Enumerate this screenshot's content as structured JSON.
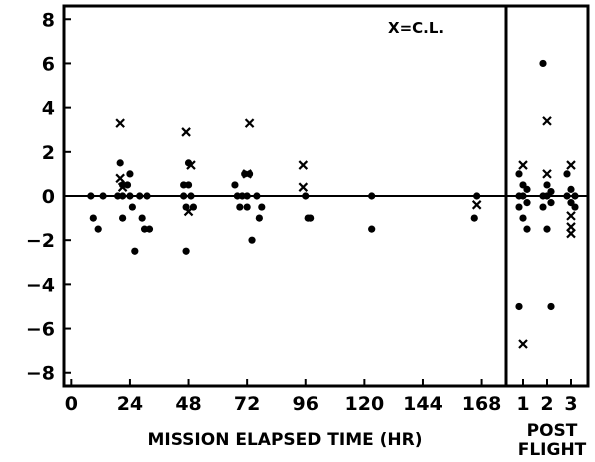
{
  "chart_data": {
    "type": "scatter",
    "xlabel": "MISSION ELAPSED TIME (HR)",
    "postflight_label_line1": "POST",
    "postflight_label_line2": "FLIGHT",
    "legend_text": "X=C.L.",
    "ylim": [
      -8.6,
      8.6
    ],
    "y_ticks": [
      8,
      6,
      4,
      2,
      0,
      -2,
      -4,
      -6,
      -8
    ],
    "x_ticks": [
      0,
      24,
      48,
      72,
      96,
      120,
      144,
      168
    ],
    "xlim": [
      -3,
      178
    ],
    "postflight_ticks": [
      "1",
      "2",
      "3"
    ],
    "zero_line": true,
    "marker_styles": {
      "dot": "filled circle",
      "x": "C.L."
    },
    "series": [
      {
        "marker": "dot",
        "points": [
          [
            8,
            0
          ],
          [
            9,
            -1
          ],
          [
            11,
            -1.5
          ],
          [
            13,
            0
          ],
          [
            19,
            0
          ],
          [
            20,
            1.5
          ],
          [
            21,
            0.5
          ],
          [
            21,
            0
          ],
          [
            21,
            -1
          ],
          [
            23,
            0.5
          ],
          [
            24,
            1
          ],
          [
            24,
            0
          ],
          [
            25,
            -0.5
          ],
          [
            26,
            -2.5
          ],
          [
            28,
            0
          ],
          [
            29,
            -1
          ],
          [
            30,
            -1.5
          ],
          [
            31,
            0
          ],
          [
            32,
            -1.5
          ],
          [
            46,
            0.5
          ],
          [
            46,
            0
          ],
          [
            47,
            -0.5
          ],
          [
            47,
            -2.5
          ],
          [
            48,
            1.5
          ],
          [
            48,
            0.5
          ],
          [
            49,
            0
          ],
          [
            50,
            -0.5
          ],
          [
            67,
            0.5
          ],
          [
            68,
            0
          ],
          [
            69,
            -0.5
          ],
          [
            70,
            0
          ],
          [
            71,
            1
          ],
          [
            72,
            0
          ],
          [
            72,
            -0.5
          ],
          [
            73,
            1
          ],
          [
            74,
            -2
          ],
          [
            76,
            0
          ],
          [
            77,
            -1
          ],
          [
            78,
            -0.5
          ],
          [
            96,
            0
          ],
          [
            97,
            -1
          ],
          [
            98,
            -1
          ],
          [
            123,
            0
          ],
          [
            123,
            -1.5
          ],
          [
            165,
            -1
          ],
          [
            166,
            0
          ]
        ],
        "postflight": [
          {
            "day": 1,
            "values": [
              1,
              0.5,
              0.3,
              0,
              0,
              -0.3,
              -0.5,
              -1,
              -1.5,
              -5
            ]
          },
          {
            "day": 2,
            "values": [
              6,
              0.5,
              0.2,
              0,
              0,
              -0.3,
              -0.5,
              -1.5,
              -5
            ]
          },
          {
            "day": 3,
            "values": [
              1,
              0.3,
              0,
              0,
              -0.3,
              -0.5
            ]
          }
        ]
      },
      {
        "marker": "x",
        "points": [
          [
            20,
            3.3
          ],
          [
            20,
            0.8
          ],
          [
            21,
            0.4
          ],
          [
            47,
            2.9
          ],
          [
            49,
            1.4
          ],
          [
            48,
            -0.7
          ],
          [
            73,
            3.3
          ],
          [
            72,
            1.0
          ],
          [
            95,
            1.4
          ],
          [
            95,
            0.4
          ],
          [
            166,
            -0.4
          ]
        ],
        "postflight": [
          {
            "day": 1,
            "values": [
              1.4,
              -6.7
            ]
          },
          {
            "day": 2,
            "values": [
              3.4,
              1.0
            ]
          },
          {
            "day": 3,
            "values": [
              1.4,
              -0.9,
              -1.4,
              -1.7
            ]
          }
        ]
      }
    ]
  }
}
